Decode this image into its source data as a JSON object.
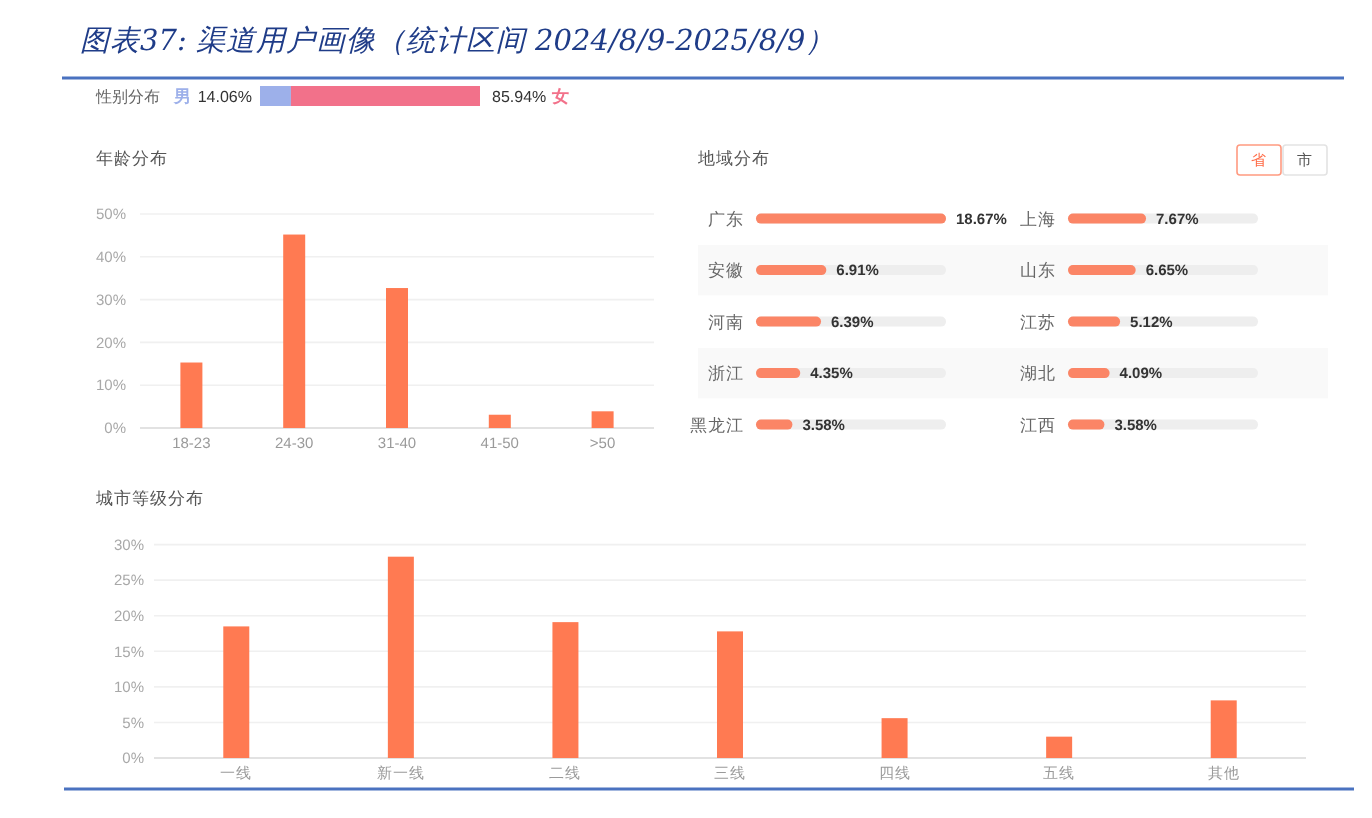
{
  "chart_data": [
    {
      "type": "bar",
      "orientation": "horizontal",
      "stacked": true,
      "title": "图表37: 渠道用户画像（统计区间 2024/8/9-2025/8/9）",
      "categories": [
        "性别分布"
      ],
      "series": [
        {
          "name": "男",
          "color": "#9db0ea",
          "values": [
            14.06
          ],
          "value_labels": [
            "14.06%"
          ]
        },
        {
          "name": "女",
          "color": "#f2718a",
          "values": [
            85.94
          ],
          "value_labels": [
            "85.94%"
          ]
        }
      ],
      "xlim": [
        0,
        100
      ]
    },
    {
      "type": "bar",
      "title": "年龄分布",
      "categories": [
        "18-23",
        "24-30",
        "31-40",
        "41-50",
        ">50"
      ],
      "values": [
        15.3,
        45.2,
        32.7,
        3.1,
        3.9
      ],
      "color": "#ff7a52",
      "ylim": [
        0,
        50
      ],
      "yticks": [
        {
          "value": 0,
          "label": "0%"
        },
        {
          "value": 10,
          "label": "10%"
        },
        {
          "value": 20,
          "label": "20%"
        },
        {
          "value": 30,
          "label": "30%"
        },
        {
          "value": 40,
          "label": "40%"
        },
        {
          "value": 50,
          "label": "50%"
        }
      ],
      "grid": "y"
    },
    {
      "type": "bar",
      "orientation": "horizontal",
      "title": "地域分布",
      "categories": [
        "广东",
        "安徽",
        "河南",
        "浙江",
        "黑龙江"
      ],
      "values": [
        18.67,
        6.91,
        6.39,
        4.35,
        3.58
      ],
      "value_labels": [
        "18.67%",
        "6.91%",
        "6.39%",
        "4.35%",
        "3.58%"
      ],
      "color": "#fb8566",
      "xlim": [
        0,
        18.67
      ],
      "annotations": [
        "省",
        "市"
      ]
    },
    {
      "type": "bar",
      "orientation": "horizontal",
      "categories": [
        "上海",
        "山东",
        "江苏",
        "湖北",
        "江西"
      ],
      "values": [
        7.67,
        6.65,
        5.12,
        4.09,
        3.58
      ],
      "value_labels": [
        "7.67%",
        "6.65%",
        "5.12%",
        "4.09%",
        "3.58%"
      ],
      "color": "#fb8566",
      "xlim": [
        0,
        18.67
      ]
    },
    {
      "type": "bar",
      "title": "城市等级分布",
      "categories": [
        "一线",
        "新一线",
        "二线",
        "三线",
        "四线",
        "五线",
        "其他"
      ],
      "values": [
        18.5,
        28.3,
        19.1,
        17.8,
        5.6,
        3.0,
        8.1
      ],
      "color": "#ff7a52",
      "ylim": [
        0,
        30
      ],
      "yticks": [
        {
          "value": 0,
          "label": "0%"
        },
        {
          "value": 5,
          "label": "5%"
        },
        {
          "value": 10,
          "label": "10%"
        },
        {
          "value": 15,
          "label": "15%"
        },
        {
          "value": 20,
          "label": "20%"
        },
        {
          "value": 25,
          "label": "25%"
        },
        {
          "value": 30,
          "label": "30%"
        }
      ],
      "grid": "y"
    }
  ]
}
